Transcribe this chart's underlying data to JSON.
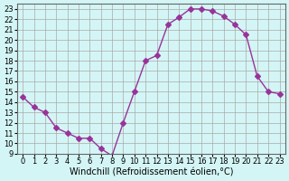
{
  "x": [
    0,
    1,
    2,
    3,
    4,
    5,
    6,
    7,
    8,
    9,
    10,
    11,
    12,
    13,
    14,
    15,
    16,
    17,
    18,
    19,
    20,
    21,
    22,
    23
  ],
  "y": [
    14.5,
    13.5,
    13.0,
    11.5,
    11.0,
    10.5,
    10.5,
    9.5,
    8.8,
    12.0,
    15.0,
    18.0,
    18.5,
    21.5,
    22.2,
    23.0,
    23.0,
    22.8,
    22.3,
    21.5,
    20.5,
    16.5,
    15.0,
    14.8
  ],
  "line_color": "#993399",
  "marker": "D",
  "marker_size": 3,
  "bg_color": "#d4f5f5",
  "grid_color": "#aaaaaa",
  "xlabel": "Windchill (Refroidissement éolien,°C)",
  "xlim": [
    -0.5,
    23.5
  ],
  "ylim": [
    9,
    23.5
  ],
  "yticks": [
    9,
    10,
    11,
    12,
    13,
    14,
    15,
    16,
    17,
    18,
    19,
    20,
    21,
    22,
    23
  ],
  "xticks": [
    0,
    1,
    2,
    3,
    4,
    5,
    6,
    7,
    8,
    9,
    10,
    11,
    12,
    13,
    14,
    15,
    16,
    17,
    18,
    19,
    20,
    21,
    22,
    23
  ],
  "title_fontsize": 7,
  "label_fontsize": 7,
  "tick_fontsize": 6
}
